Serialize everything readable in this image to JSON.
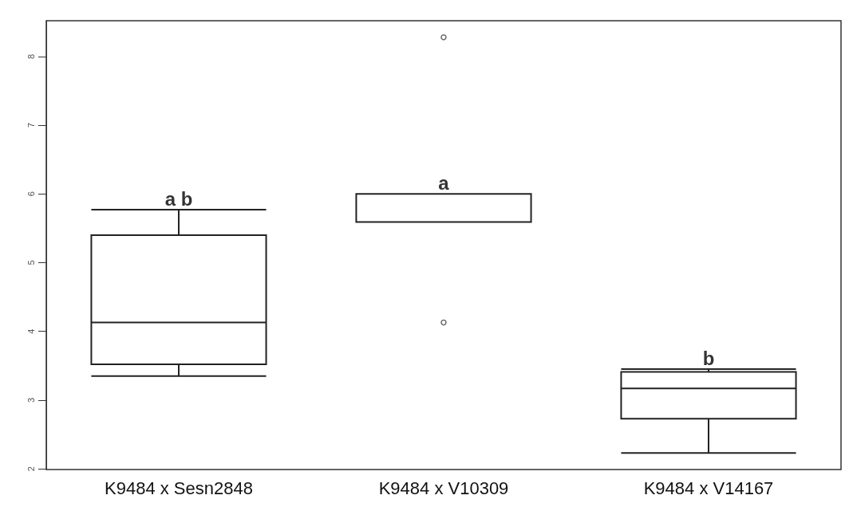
{
  "chart_data": {
    "type": "box",
    "categories": [
      "K9484 x Sesn2848",
      "K9484 x V10309",
      "K9484 x V14167"
    ],
    "boxes": [
      {
        "low": 3.35,
        "q1": 3.52,
        "median": 4.13,
        "q3": 5.4,
        "high": 5.77
      },
      {
        "low": 5.59,
        "q1": 5.59,
        "median": 6.0,
        "q3": 6.0,
        "high": 6.0,
        "outliers": [
          8.28,
          4.13
        ]
      },
      {
        "low": 2.23,
        "q1": 2.73,
        "median": 3.17,
        "q3": 3.41,
        "high": 3.45
      }
    ],
    "ylim": [
      1.99,
      8.52
    ],
    "yticks": [
      2,
      3,
      4,
      5,
      6,
      7,
      8
    ],
    "grid": false,
    "annotations": [
      {
        "text": "a b",
        "x": "K9484 x Sesn2848",
        "y": 5.77
      },
      {
        "text": "a",
        "x": "K9484 x V10309",
        "y": 6.0
      },
      {
        "text": "b",
        "x": "K9484 x V14167",
        "y": 3.45
      }
    ]
  }
}
